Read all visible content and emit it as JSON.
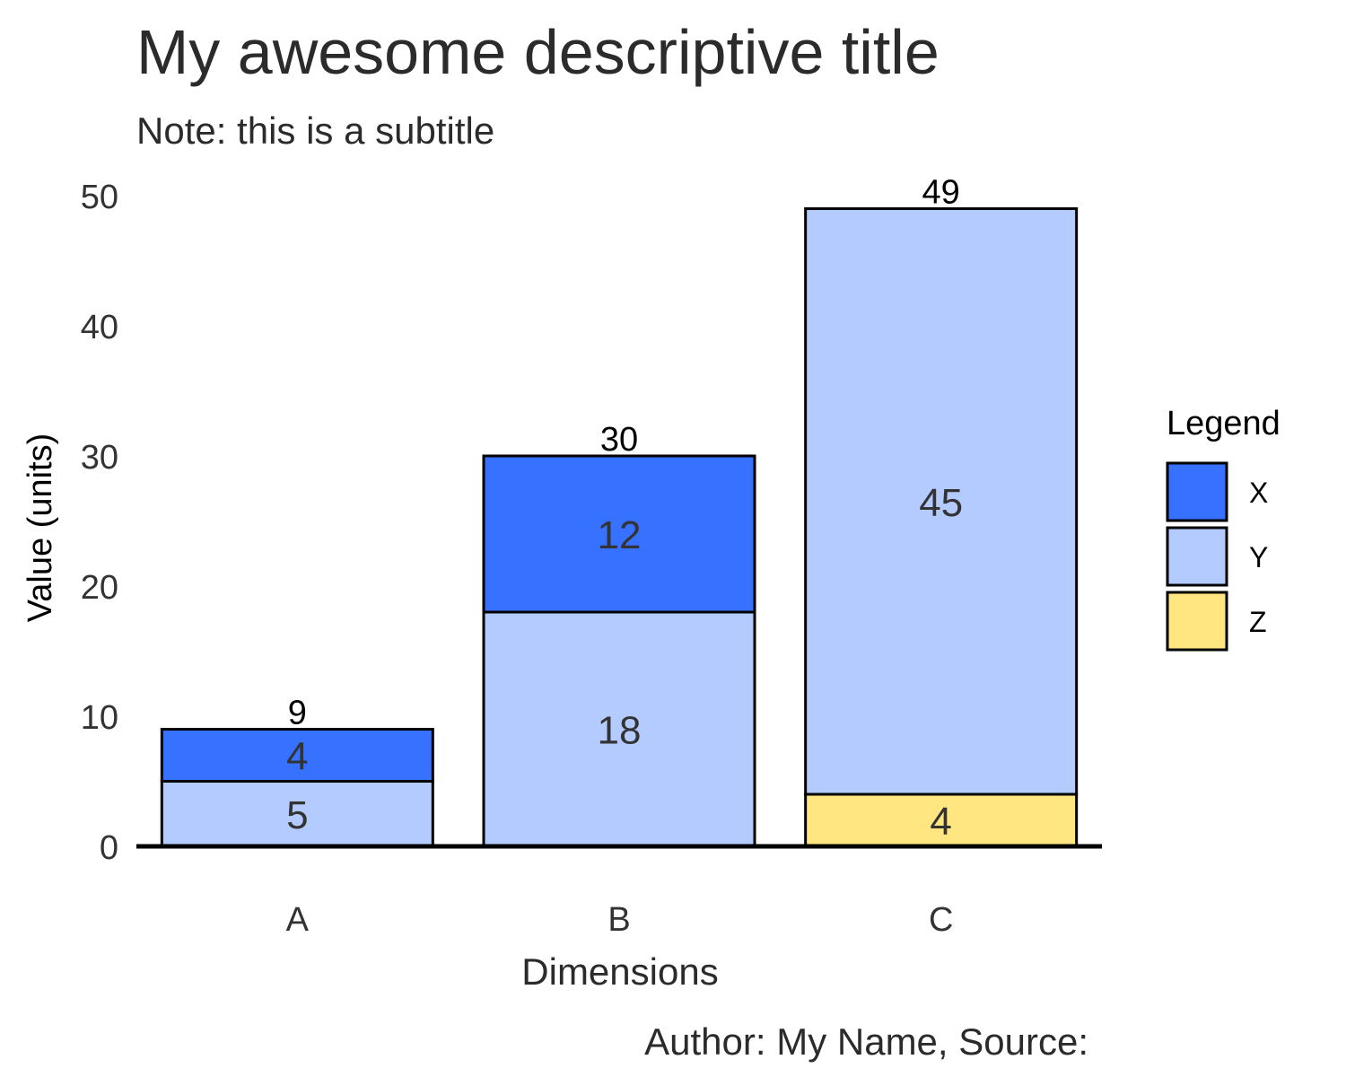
{
  "chart_data": {
    "type": "bar",
    "stacked": true,
    "title": "My awesome descriptive title",
    "subtitle": "Note: this is a subtitle",
    "caption": "Author: My Name, Source:",
    "xlabel": "Dimensions",
    "ylabel": "Value (units)",
    "ylim": [
      0,
      50
    ],
    "yticks": [
      0,
      10,
      20,
      30,
      40,
      50
    ],
    "categories": [
      "A",
      "B",
      "C"
    ],
    "series": [
      {
        "name": "Z",
        "color": "#FFE680",
        "values": [
          0,
          0,
          4
        ]
      },
      {
        "name": "Y",
        "color": "#B3CBFF",
        "values": [
          5,
          18,
          45
        ]
      },
      {
        "name": "X",
        "color": "#3671FF",
        "values": [
          4,
          12,
          0
        ]
      }
    ],
    "totals": [
      9,
      30,
      49
    ],
    "legend": {
      "title": "Legend",
      "placement": "right",
      "order": [
        "X",
        "Y",
        "Z"
      ]
    },
    "grid": false
  }
}
